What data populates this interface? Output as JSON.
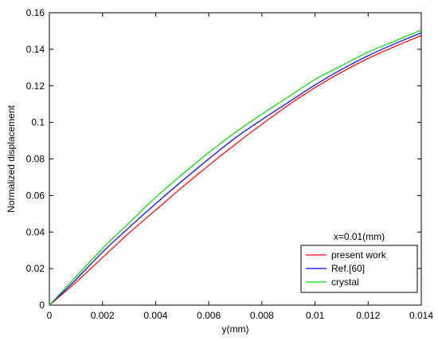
{
  "chart_data": {
    "type": "line",
    "xlabel": "y(mm)",
    "ylabel": "Normalized displacement",
    "xlim": [
      0,
      0.014
    ],
    "ylim": [
      0,
      0.16
    ],
    "x_ticks": [
      0,
      0.002,
      0.004,
      0.006,
      0.008,
      0.01,
      0.012,
      0.014
    ],
    "x_tick_labels": [
      "0",
      "0.002",
      "0.004",
      "0.006",
      "0.008",
      "0.01",
      "0.012",
      "0.014"
    ],
    "y_ticks": [
      0,
      0.02,
      0.04,
      0.06,
      0.08,
      0.1,
      0.12,
      0.14,
      0.16
    ],
    "y_tick_labels": [
      "0",
      "0.02",
      "0.04",
      "0.06",
      "0.08",
      "0.1",
      "0.12",
      "0.14",
      "0.16"
    ],
    "grid": false,
    "legend": {
      "title": "x=0.01(mm)",
      "placement": "bottom-right"
    },
    "x": [
      0,
      0.001,
      0.002,
      0.003,
      0.004,
      0.005,
      0.006,
      0.007,
      0.008,
      0.009,
      0.01,
      0.011,
      0.012,
      0.013,
      0.014
    ],
    "series": [
      {
        "name": "present work",
        "color": "#ff0000",
        "values": [
          0,
          0.0125,
          0.026,
          0.0395,
          0.052,
          0.0645,
          0.0765,
          0.088,
          0.099,
          0.1095,
          0.119,
          0.1275,
          0.135,
          0.1415,
          0.1475
        ]
      },
      {
        "name": "Ref.[60]",
        "color": "#0000ff",
        "values": [
          0,
          0.014,
          0.029,
          0.0425,
          0.0555,
          0.068,
          0.08,
          0.0915,
          0.1015,
          0.111,
          0.1205,
          0.129,
          0.1365,
          0.143,
          0.149
        ]
      },
      {
        "name": "crystal",
        "color": "#00dd00",
        "values": [
          0,
          0.0155,
          0.031,
          0.045,
          0.059,
          0.0715,
          0.0835,
          0.0945,
          0.1045,
          0.114,
          0.1235,
          0.131,
          0.1385,
          0.1445,
          0.1505
        ]
      }
    ]
  }
}
